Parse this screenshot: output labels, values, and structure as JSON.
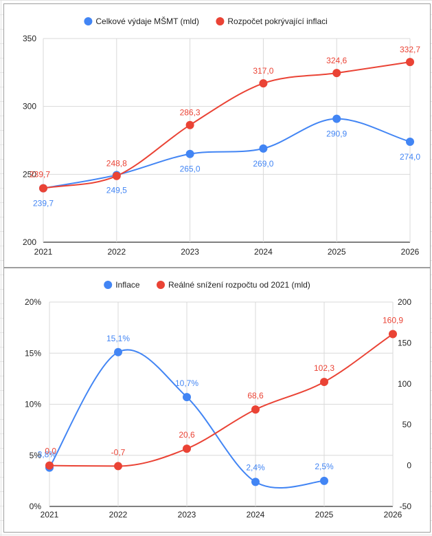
{
  "chart_data": [
    {
      "type": "line",
      "categories": [
        "2021",
        "2022",
        "2023",
        "2024",
        "2025",
        "2026"
      ],
      "series": [
        {
          "name": "Celkové výdaje MŠMT (mld)",
          "color": "#4285f4",
          "values": [
            239.7,
            249.5,
            265.0,
            269.0,
            290.9,
            274.0
          ],
          "labels": [
            "239,7",
            "249,5",
            "265,0",
            "269,0",
            "290,9",
            "274,0"
          ]
        },
        {
          "name": "Rozpočet pokrývající inflaci",
          "color": "#ea4335",
          "values": [
            239.7,
            248.8,
            286.3,
            317.0,
            324.6,
            332.7
          ],
          "labels": [
            "239,7",
            "248,8",
            "286,3",
            "317,0",
            "324,6",
            "332,7"
          ]
        }
      ],
      "ylim": [
        200,
        350
      ],
      "yticks": [
        "200",
        "250",
        "300",
        "350"
      ],
      "legend": "top",
      "grid": true
    },
    {
      "type": "line",
      "categories": [
        "2021",
        "2022",
        "2023",
        "2024",
        "2025",
        "2026"
      ],
      "series": [
        {
          "name": "Inflace",
          "color": "#4285f4",
          "axis": "left",
          "values": [
            3.8,
            15.1,
            10.7,
            2.4,
            2.5,
            null
          ],
          "labels": [
            "3,8%",
            "15,1%",
            "10,7%",
            "2,4%",
            "2,5%",
            ""
          ]
        },
        {
          "name": "Reálné snížení rozpočtu od 2021 (mld)",
          "color": "#ea4335",
          "axis": "right",
          "values": [
            0.0,
            -0.7,
            20.6,
            68.6,
            102.3,
            160.9
          ],
          "labels": [
            "0,0",
            "-0,7",
            "20,6",
            "68,6",
            "102,3",
            "160,9"
          ]
        }
      ],
      "ylim_left": [
        0,
        20
      ],
      "yticks_left": [
        "0%",
        "5%",
        "10%",
        "15%",
        "20%"
      ],
      "ylim_right": [
        -50,
        200
      ],
      "yticks_right": [
        "-50",
        "0",
        "50",
        "100",
        "150",
        "200"
      ],
      "legend": "top",
      "grid": true
    }
  ]
}
